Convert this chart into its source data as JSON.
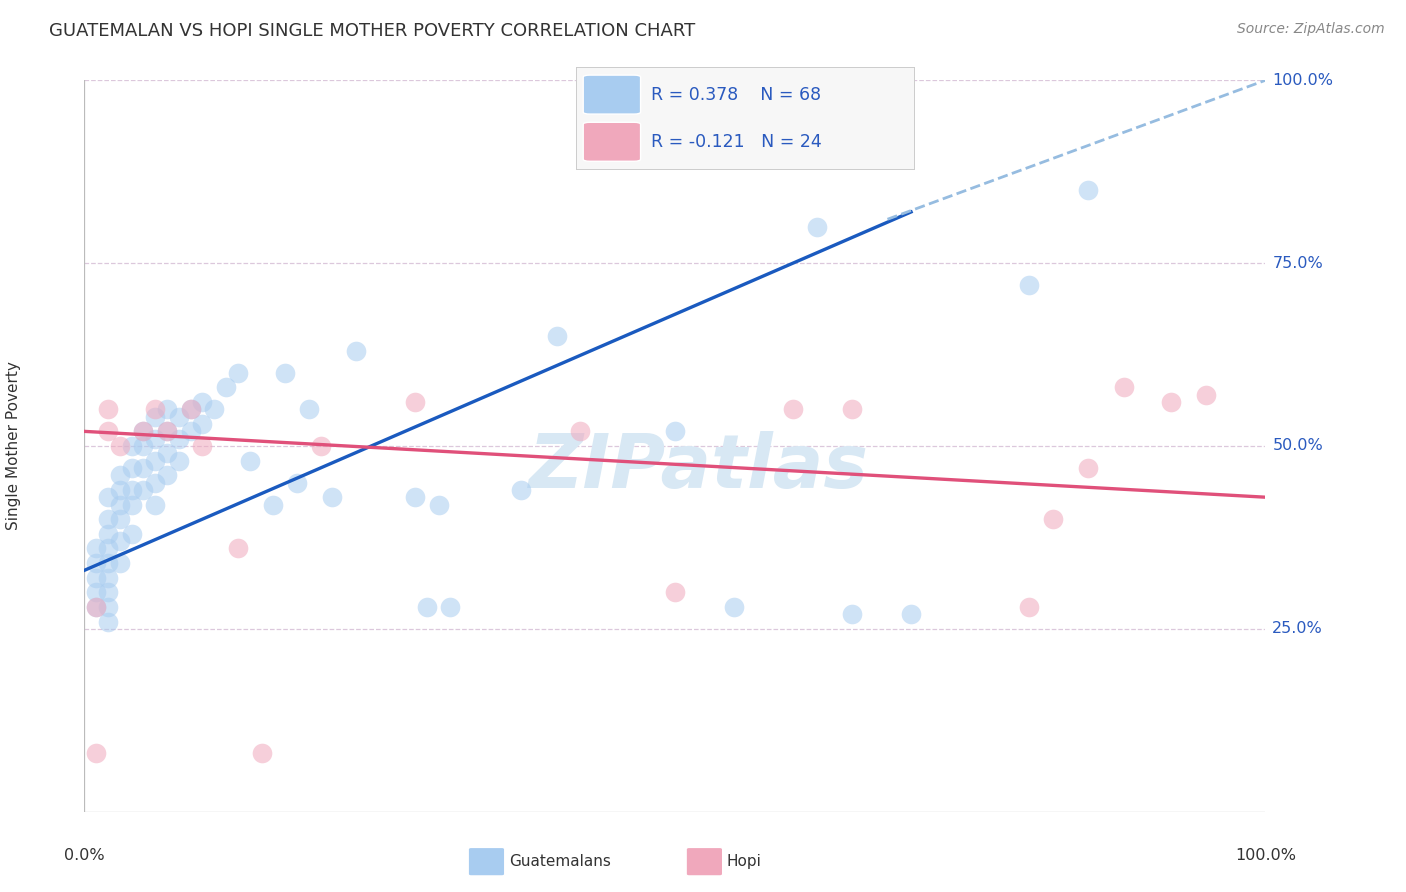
{
  "title": "GUATEMALAN VS HOPI SINGLE MOTHER POVERTY CORRELATION CHART",
  "source": "Source: ZipAtlas.com",
  "ylabel": "Single Mother Poverty",
  "legend_r_blue": "R = 0.378",
  "legend_n_blue": "N = 68",
  "legend_r_pink": "R = -0.121",
  "legend_n_pink": "N = 24",
  "legend_label_blue": "Guatemalans",
  "legend_label_pink": "Hopi",
  "blue_color": "#a8ccf0",
  "pink_color": "#f0a8bc",
  "line_blue_color": "#1a5abf",
  "line_pink_color": "#e0507a",
  "line_dash_color": "#96bce0",
  "watermark_color": "#d8e8f4",
  "grid_color": "#dcc8dc",
  "axis_label_color": "#2a5abf",
  "text_color": "#333333",
  "background": "#ffffff",
  "source_color": "#888888",
  "blue_x": [
    1,
    1,
    1,
    1,
    1,
    2,
    2,
    2,
    2,
    2,
    2,
    2,
    2,
    2,
    3,
    3,
    3,
    3,
    3,
    3,
    4,
    4,
    4,
    4,
    4,
    5,
    5,
    5,
    5,
    6,
    6,
    6,
    6,
    6,
    7,
    7,
    7,
    7,
    8,
    8,
    8,
    9,
    9,
    10,
    10,
    11,
    12,
    13,
    14,
    16,
    17,
    18,
    19,
    21,
    23,
    28,
    29,
    30,
    31,
    37,
    40,
    50,
    55,
    62,
    65,
    70,
    80,
    85
  ],
  "blue_y": [
    36,
    34,
    32,
    30,
    28,
    43,
    40,
    38,
    36,
    34,
    32,
    30,
    28,
    26,
    46,
    44,
    42,
    40,
    37,
    34,
    50,
    47,
    44,
    42,
    38,
    52,
    50,
    47,
    44,
    54,
    51,
    48,
    45,
    42,
    55,
    52,
    49,
    46,
    54,
    51,
    48,
    55,
    52,
    56,
    53,
    55,
    58,
    60,
    48,
    42,
    60,
    45,
    55,
    43,
    63,
    43,
    28,
    42,
    28,
    44,
    65,
    52,
    28,
    80,
    27,
    27,
    72,
    85
  ],
  "pink_x": [
    1,
    1,
    2,
    2,
    3,
    5,
    6,
    7,
    9,
    10,
    13,
    15,
    20,
    28,
    42,
    50,
    60,
    65,
    80,
    82,
    85,
    88,
    92,
    95
  ],
  "pink_y": [
    28,
    8,
    55,
    52,
    50,
    52,
    55,
    52,
    55,
    50,
    36,
    8,
    50,
    56,
    52,
    30,
    55,
    55,
    28,
    40,
    47,
    58,
    56,
    57
  ],
  "blue_line_x": [
    0,
    70
  ],
  "blue_line_y": [
    33,
    82
  ],
  "dash_line_x": [
    68,
    100
  ],
  "dash_line_y": [
    81,
    100
  ],
  "pink_line_x": [
    0,
    100
  ],
  "pink_line_y": [
    52,
    43
  ],
  "xlim": [
    0,
    100
  ],
  "ylim": [
    0,
    100
  ],
  "ytick_vals": [
    25,
    50,
    75,
    100
  ],
  "ytick_labels": [
    "25.0%",
    "50.0%",
    "75.0%",
    "100.0%"
  ],
  "xtick_left": "0.0%",
  "xtick_right": "100.0%"
}
